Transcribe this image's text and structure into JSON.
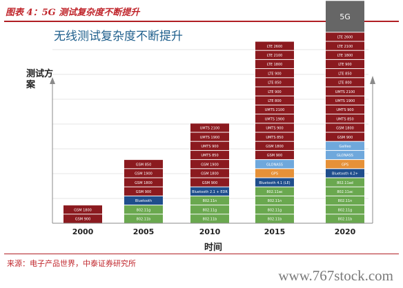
{
  "header": {
    "title": "图表 4：5G 测试复杂度不断提升"
  },
  "source": "来源：电子产品世界，中泰证券研究所",
  "watermark": "www.767stock.com",
  "chart_data": {
    "type": "bar",
    "title": "无线测试复杂度不断提升",
    "ylabel": "测试方案",
    "xlabel": "时间",
    "categories": [
      "2000",
      "2005",
      "2010",
      "2015",
      "2020"
    ],
    "grid": true,
    "stacks": [
      {
        "x": "2000",
        "segments": [
          {
            "label": "GSM 900",
            "color": "#8b1a1f"
          },
          {
            "label": "GSM 1800",
            "color": "#8b1a1f"
          }
        ]
      },
      {
        "x": "2005",
        "segments": [
          {
            "label": "802.11b",
            "color": "#6aa84f"
          },
          {
            "label": "802.11g",
            "color": "#6aa84f"
          },
          {
            "label": "Bluetooth",
            "color": "#1f4e8c"
          },
          {
            "label": "GSM 900",
            "color": "#8b1a1f"
          },
          {
            "label": "GSM 1800",
            "color": "#8b1a1f"
          },
          {
            "label": "GSM 1900",
            "color": "#8b1a1f"
          },
          {
            "label": "GSM 850",
            "color": "#8b1a1f"
          }
        ]
      },
      {
        "x": "2010",
        "segments": [
          {
            "label": "802.11b",
            "color": "#6aa84f"
          },
          {
            "label": "802.11g",
            "color": "#6aa84f"
          },
          {
            "label": "802.11n",
            "color": "#6aa84f"
          },
          {
            "label": "Bluetooth 2.1 + EDR",
            "color": "#1f4e8c"
          },
          {
            "label": "GSM 900",
            "color": "#8b1a1f"
          },
          {
            "label": "GSM 1800",
            "color": "#8b1a1f"
          },
          {
            "label": "GSM 1900",
            "color": "#8b1a1f"
          },
          {
            "label": "UMTS 850",
            "color": "#8b1a1f"
          },
          {
            "label": "UMTS 900",
            "color": "#8b1a1f"
          },
          {
            "label": "UMTS 1900",
            "color": "#8b1a1f"
          },
          {
            "label": "UMTS 2100",
            "color": "#8b1a1f"
          }
        ]
      },
      {
        "x": "2015",
        "segments": [
          {
            "label": "802.11b",
            "color": "#6aa84f"
          },
          {
            "label": "802.11g",
            "color": "#6aa84f"
          },
          {
            "label": "802.11n",
            "color": "#6aa84f"
          },
          {
            "label": "802.11ac",
            "color": "#6aa84f"
          },
          {
            "label": "Bluetooth 4.1 (LE)",
            "color": "#1f4e8c"
          },
          {
            "label": "GPS",
            "color": "#e69138"
          },
          {
            "label": "GLONASS",
            "color": "#6fa8dc"
          },
          {
            "label": "GSM 900",
            "color": "#8b1a1f"
          },
          {
            "label": "GSM 1800",
            "color": "#8b1a1f"
          },
          {
            "label": "UMTS 850",
            "color": "#8b1a1f"
          },
          {
            "label": "UMTS 900",
            "color": "#8b1a1f"
          },
          {
            "label": "UMTS 1900",
            "color": "#8b1a1f"
          },
          {
            "label": "UMTS 2100",
            "color": "#8b1a1f"
          },
          {
            "label": "LTE 800",
            "color": "#8b1a1f"
          },
          {
            "label": "LTE 900",
            "color": "#8b1a1f"
          },
          {
            "label": "LTE 850",
            "color": "#8b1a1f"
          },
          {
            "label": "LTE 900",
            "color": "#8b1a1f"
          },
          {
            "label": "LTE 1800",
            "color": "#8b1a1f"
          },
          {
            "label": "LTE 2100",
            "color": "#8b1a1f"
          },
          {
            "label": "LTE 2600",
            "color": "#8b1a1f"
          }
        ]
      },
      {
        "x": "2020",
        "segments": [
          {
            "label": "802.11b",
            "color": "#6aa84f"
          },
          {
            "label": "802.11g",
            "color": "#6aa84f"
          },
          {
            "label": "802.11n",
            "color": "#6aa84f"
          },
          {
            "label": "802.11ac",
            "color": "#6aa84f"
          },
          {
            "label": "802.11ad",
            "color": "#6aa84f"
          },
          {
            "label": "Bluetooth 4.2+",
            "color": "#1f4e8c"
          },
          {
            "label": "GPS",
            "color": "#e69138"
          },
          {
            "label": "GLONASS",
            "color": "#6fa8dc"
          },
          {
            "label": "Galileo",
            "color": "#6fa8dc"
          },
          {
            "label": "GSM 900",
            "color": "#8b1a1f"
          },
          {
            "label": "GSM 1800",
            "color": "#8b1a1f"
          },
          {
            "label": "UMTS 850",
            "color": "#8b1a1f"
          },
          {
            "label": "UMTS 900",
            "color": "#8b1a1f"
          },
          {
            "label": "UMTS 1900",
            "color": "#8b1a1f"
          },
          {
            "label": "UMTS 2100",
            "color": "#8b1a1f"
          },
          {
            "label": "LTE 800",
            "color": "#8b1a1f"
          },
          {
            "label": "LTE 850",
            "color": "#8b1a1f"
          },
          {
            "label": "LTE 900",
            "color": "#8b1a1f"
          },
          {
            "label": "LTE 1800",
            "color": "#8b1a1f"
          },
          {
            "label": "LTE 2100",
            "color": "#8b1a1f"
          },
          {
            "label": "LTE 2600",
            "color": "#8b1a1f"
          },
          {
            "label": "5G",
            "color": "#666666"
          }
        ]
      }
    ]
  }
}
